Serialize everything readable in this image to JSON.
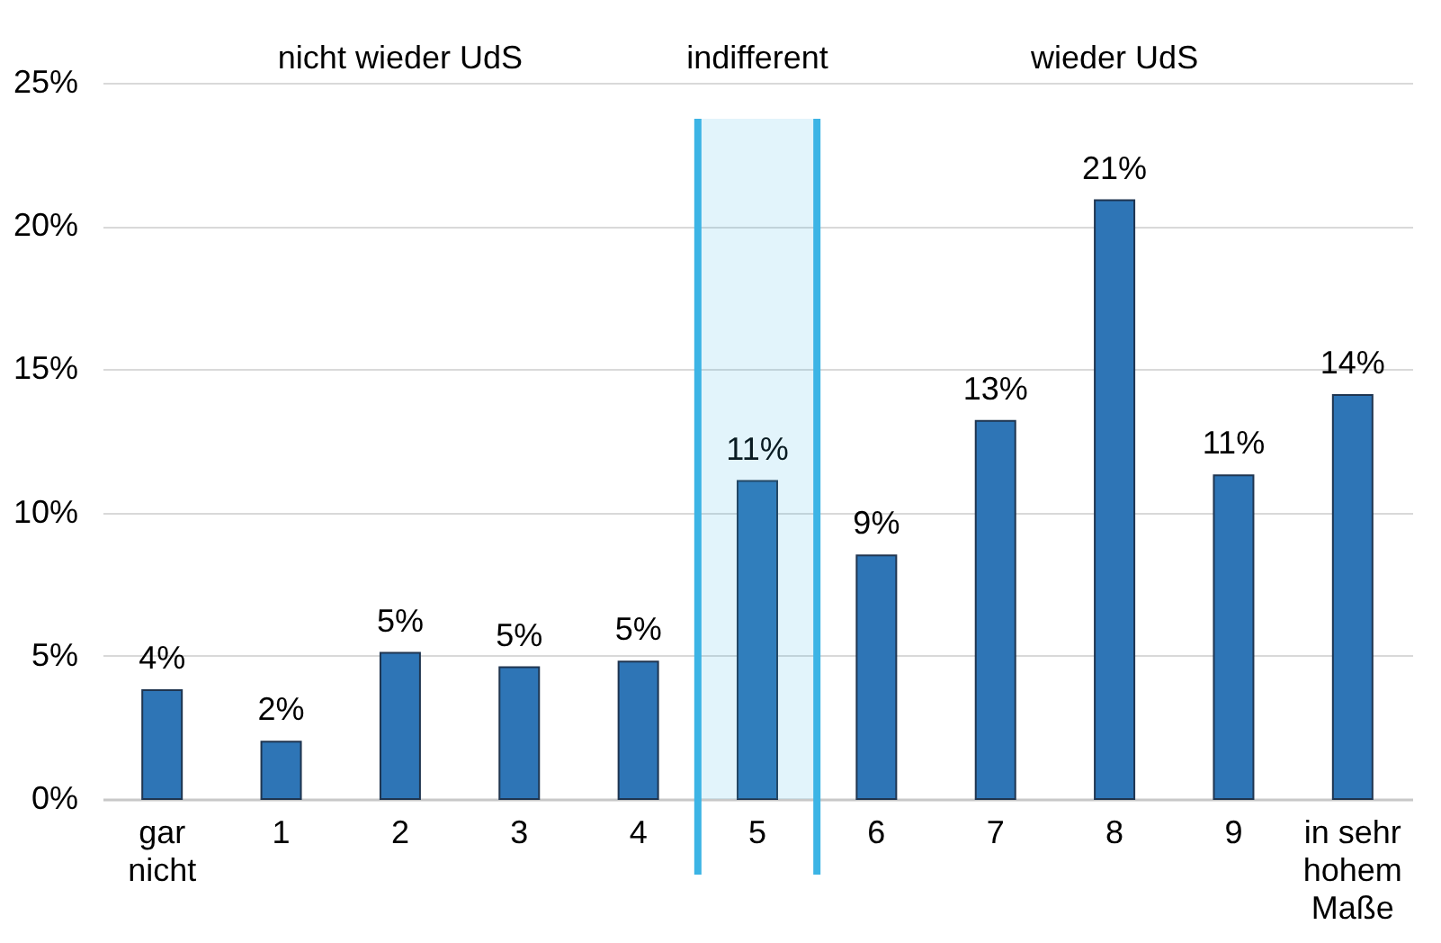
{
  "chart_data": {
    "type": "bar",
    "categories": [
      "gar nicht",
      "1",
      "2",
      "3",
      "4",
      "5",
      "6",
      "7",
      "8",
      "9",
      "in sehr hohem Maße"
    ],
    "values": [
      3.8,
      2.0,
      5.1,
      4.6,
      4.8,
      11.1,
      8.5,
      13.2,
      20.9,
      11.3,
      14.1
    ],
    "value_labels": [
      "4%",
      "2%",
      "5%",
      "5%",
      "5%",
      "11%",
      "9%",
      "13%",
      "21%",
      "11%",
      "14%"
    ],
    "color": "#2e75b6",
    "ylim": [
      0,
      25
    ],
    "yticks": [
      {
        "value": 0,
        "label": "0%"
      },
      {
        "value": 5,
        "label": "5%"
      },
      {
        "value": 10,
        "label": "10%"
      },
      {
        "value": 15,
        "label": "15%"
      },
      {
        "value": 20,
        "label": "20%"
      },
      {
        "value": 25,
        "label": "25%"
      }
    ],
    "grid": "y",
    "bands": [
      {
        "axis": "x",
        "from": "5",
        "to": "5",
        "color": "#3cb4e5"
      }
    ],
    "annotations": [
      "nicht wieder UdS",
      "indifferent",
      "wieder UdS"
    ]
  }
}
